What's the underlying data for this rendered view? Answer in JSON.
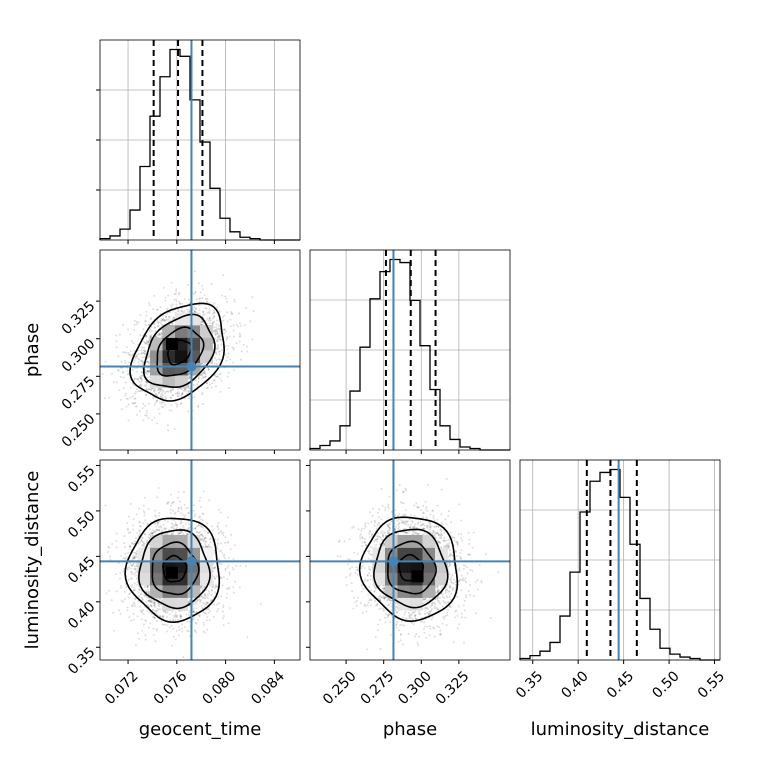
{
  "chart_data": {
    "type": "corner",
    "parameters": [
      "geocent_time",
      "phase",
      "luminosity_distance"
    ],
    "truths": {
      "geocent_time": 0.0772,
      "phase": 0.2815,
      "luminosity_distance": 0.4445
    },
    "truth_color": "#4682b4",
    "grid": true,
    "axes": {
      "geocent_time": {
        "label": "geocent_time",
        "range": [
          0.0697,
          0.0861
        ],
        "ticks": [
          0.072,
          0.076,
          0.08,
          0.084
        ],
        "tick_labels": [
          "0.072",
          "0.076",
          "0.080",
          "0.084"
        ]
      },
      "phase": {
        "label": "phase",
        "range": [
          0.226,
          0.359
        ],
        "ticks": [
          0.25,
          0.275,
          0.3,
          0.325
        ],
        "tick_labels": [
          "0.250",
          "0.275",
          "0.300",
          "0.325"
        ]
      },
      "luminosity_distance": {
        "label": "luminosity_distance",
        "range": [
          0.336,
          0.556
        ],
        "ticks": [
          0.35,
          0.4,
          0.45,
          0.5,
          0.55
        ],
        "tick_labels": [
          "0.35",
          "0.40",
          "0.45",
          "0.50",
          "0.55"
        ]
      }
    },
    "marginals": [
      {
        "parameter": "geocent_time",
        "quantiles": [
          0.0741,
          0.0761,
          0.0781
        ],
        "bin_edges": [
          0.0697,
          0.07052,
          0.07134,
          0.07216,
          0.07298,
          0.0738,
          0.07462,
          0.07544,
          0.07626,
          0.07708,
          0.0779,
          0.07872,
          0.07954,
          0.08036,
          0.08118,
          0.082,
          0.08282,
          0.08364,
          0.08446,
          0.08528,
          0.0861
        ],
        "counts": [
          1,
          3,
          8,
          22,
          54,
          91,
          120,
          140,
          135,
          103,
          72,
          38,
          16,
          6,
          2,
          1,
          0,
          0,
          0,
          0
        ]
      },
      {
        "parameter": "phase",
        "quantiles": [
          0.2765,
          0.293,
          0.3095
        ],
        "bin_edges": [
          0.226,
          0.23265,
          0.2393,
          0.24595,
          0.2526,
          0.25925,
          0.2659,
          0.27255,
          0.2792,
          0.28585,
          0.2925,
          0.29915,
          0.3058,
          0.31245,
          0.3191,
          0.32575,
          0.3324,
          0.33905,
          0.3457,
          0.35235,
          0.359
        ],
        "counts": [
          1,
          3,
          6,
          16,
          39,
          68,
          100,
          118,
          126,
          124,
          99,
          69,
          40,
          16,
          7,
          2,
          1,
          0,
          0,
          0
        ]
      },
      {
        "parameter": "luminosity_distance",
        "quantiles": [
          0.4095,
          0.4355,
          0.4645
        ],
        "bin_edges": [
          0.336,
          0.347,
          0.358,
          0.369,
          0.38,
          0.391,
          0.402,
          0.413,
          0.424,
          0.435,
          0.446,
          0.457,
          0.468,
          0.479,
          0.49,
          0.501,
          0.512,
          0.523,
          0.534,
          0.545,
          0.556
        ],
        "counts": [
          1,
          3,
          6,
          12,
          30,
          60,
          101,
          122,
          128,
          130,
          111,
          79,
          42,
          21,
          8,
          4,
          2,
          1,
          0,
          0
        ]
      }
    ],
    "joint": [
      {
        "x": "geocent_time",
        "y": "phase",
        "mean": [
          0.0762,
          0.291
        ],
        "sd": [
          0.0019,
          0.016
        ],
        "corr": 0.3,
        "mode": [
          0.0756,
          0.2965
        ]
      },
      {
        "x": "geocent_time",
        "y": "luminosity_distance",
        "mean": [
          0.0758,
          0.436
        ],
        "sd": [
          0.0019,
          0.0285
        ],
        "corr": 0.0,
        "mode": [
          0.0756,
          0.432
        ]
      },
      {
        "x": "phase",
        "y": "luminosity_distance",
        "mean": [
          0.293,
          0.437
        ],
        "sd": [
          0.016,
          0.0285
        ],
        "corr": -0.05,
        "mode": [
          0.2975,
          0.428
        ]
      }
    ]
  }
}
